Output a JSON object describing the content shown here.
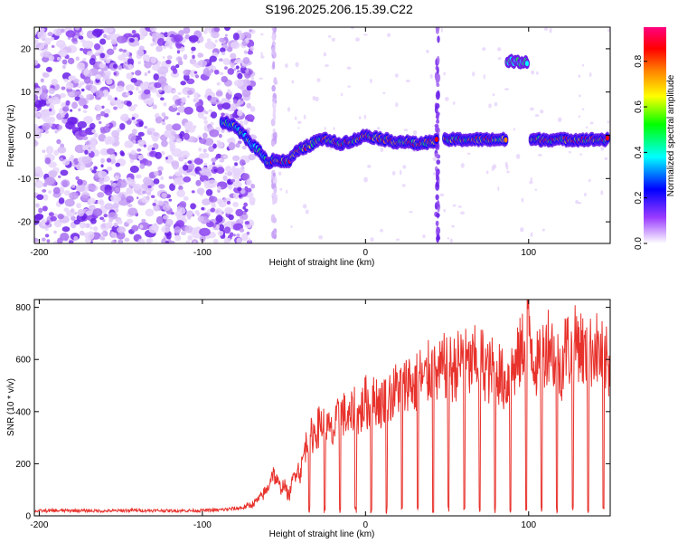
{
  "title": "S196.2025.206.15.39.C22",
  "chart_data": [
    {
      "type": "heatmap",
      "xlabel": "Height of straight line (km)",
      "ylabel": "Frequency (Hz)",
      "xlim": [
        -203,
        150
      ],
      "ylim": [
        -25,
        25
      ],
      "x_ticks": [
        -200,
        -100,
        0,
        100
      ],
      "y_ticks": [
        -20,
        -10,
        0,
        10,
        20
      ],
      "colorbar": {
        "label": "Normalized spectral amplitude",
        "range": [
          0,
          0.95
        ],
        "ticks": [
          0.0,
          0.2,
          0.4,
          0.6,
          0.8
        ],
        "colors": [
          "#ffffff",
          "#9a3cff",
          "#0000ff",
          "#00ffff",
          "#00ff00",
          "#ffff00",
          "#ff8000",
          "#ff0000",
          "#ff0080"
        ]
      },
      "noise_region_x": [
        -203,
        -77
      ],
      "signal_track": [
        {
          "x": -88,
          "y": 3
        },
        {
          "x": -82,
          "y": 2.5
        },
        {
          "x": -76,
          "y": 0.5
        },
        {
          "x": -70,
          "y": -2
        },
        {
          "x": -64,
          "y": -4
        },
        {
          "x": -60,
          "y": -6.5
        },
        {
          "x": -56,
          "y": -5.5
        },
        {
          "x": -52,
          "y": -6
        },
        {
          "x": -47,
          "y": -6
        },
        {
          "x": -43,
          "y": -4
        },
        {
          "x": -38,
          "y": -3
        },
        {
          "x": -33,
          "y": -2
        },
        {
          "x": -28,
          "y": -1
        },
        {
          "x": -22,
          "y": -1
        },
        {
          "x": -17,
          "y": -2
        },
        {
          "x": -11,
          "y": -1.5
        },
        {
          "x": -6,
          "y": -1
        },
        {
          "x": 0,
          "y": 0
        },
        {
          "x": 6,
          "y": -0.5
        },
        {
          "x": 12,
          "y": -1
        },
        {
          "x": 18,
          "y": -1.5
        },
        {
          "x": 25,
          "y": -1.5
        },
        {
          "x": 32,
          "y": -2
        },
        {
          "x": 40,
          "y": -1.5
        },
        {
          "x": 50,
          "y": -1
        },
        {
          "x": 60,
          "y": -1
        },
        {
          "x": 70,
          "y": -1
        },
        {
          "x": 80,
          "y": -1
        },
        {
          "x": 86,
          "y": -1
        },
        {
          "x": 103,
          "y": -1
        },
        {
          "x": 110,
          "y": -1
        },
        {
          "x": 118,
          "y": -1
        },
        {
          "x": 126,
          "y": -1
        },
        {
          "x": 134,
          "y": -1
        },
        {
          "x": 142,
          "y": -1
        },
        {
          "x": 149,
          "y": -1
        }
      ],
      "gaps_x": [
        [
          44,
          48
        ],
        [
          86,
          101
        ]
      ],
      "vertical_streaks_x": [
        -56,
        44
      ],
      "extra_blob": {
        "x_range": [
          87,
          99
        ],
        "y": 17
      }
    },
    {
      "type": "line",
      "xlabel": "Height of straight line (km)",
      "ylabel": "SNR (10 * v/v)",
      "xlim": [
        -203,
        150
      ],
      "ylim": [
        0,
        830
      ],
      "x_ticks": [
        -200,
        -100,
        0,
        100
      ],
      "y_ticks": [
        0,
        200,
        400,
        600,
        800
      ],
      "color": "#e8322c",
      "series": [
        {
          "x": [
            -203,
            -180,
            -160,
            -140,
            -120,
            -100,
            -90,
            -80,
            -75,
            -70,
            -65,
            -60,
            -57,
            -55,
            -52,
            -50,
            -47,
            -44,
            -42,
            -40,
            -37,
            -34,
            -30,
            -27,
            -24,
            -20,
            -17,
            -14,
            -10,
            -7,
            -4,
            0,
            3,
            6,
            10,
            13,
            16,
            20,
            23,
            26,
            30,
            33,
            36,
            40,
            43,
            46,
            50,
            53,
            56,
            60,
            63,
            66,
            70,
            73,
            76,
            80,
            83,
            86,
            90,
            93,
            96,
            100,
            103,
            106,
            110,
            113,
            116,
            120,
            123,
            126,
            130,
            133,
            136,
            140,
            143,
            146,
            150
          ],
          "y": [
            20,
            22,
            20,
            23,
            21,
            22,
            24,
            30,
            35,
            45,
            70,
            110,
            180,
            150,
            110,
            130,
            80,
            160,
            200,
            170,
            280,
            320,
            350,
            380,
            360,
            330,
            390,
            420,
            380,
            440,
            400,
            470,
            430,
            480,
            450,
            510,
            480,
            530,
            500,
            560,
            520,
            570,
            540,
            600,
            560,
            580,
            620,
            590,
            610,
            640,
            600,
            620,
            650,
            610,
            580,
            620,
            560,
            540,
            590,
            620,
            680,
            790,
            650,
            600,
            680,
            720,
            640,
            600,
            700,
            650,
            720,
            680,
            620,
            700,
            660,
            640,
            600
          ]
        }
      ]
    }
  ]
}
